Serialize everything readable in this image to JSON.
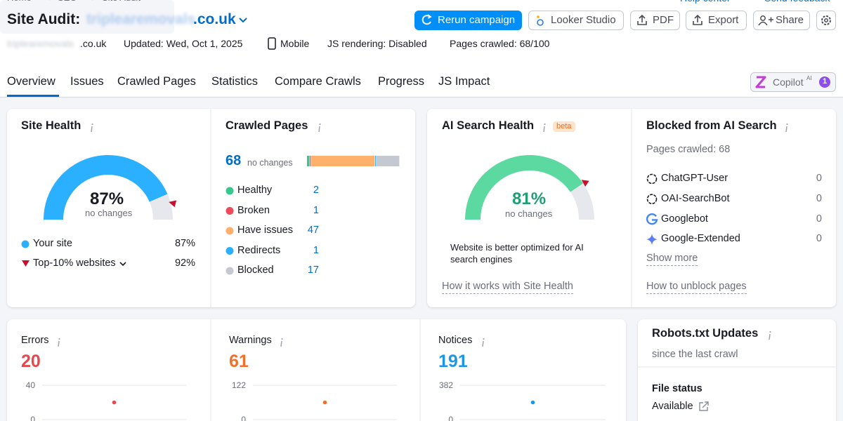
{
  "breadcrumb": [
    "Home",
    "SEO",
    "Site Audit"
  ],
  "top_links": [
    "Help center",
    "Send feedback"
  ],
  "header": {
    "title": "Site Audit:",
    "domain_blurred": "triplearemovals",
    "domain_tld": ".co.uk"
  },
  "actions": [
    "Rerun campaign",
    "Looker Studio",
    "PDF",
    "Export",
    "Share"
  ],
  "info": {
    "domain_blurred": "triplearemovals",
    "domain_tld": ".co.uk",
    "updated": "Updated: Wed, Oct 1, 2025",
    "device": "Mobile",
    "js_rendering": "JS rendering: Disabled",
    "pages_crawled": "Pages crawled: 68/100"
  },
  "tabs": [
    "Overview",
    "Issues",
    "Crawled Pages",
    "Statistics",
    "Compare Crawls",
    "Progress",
    "JS Impact"
  ],
  "copilot": {
    "label": "Copilot",
    "sup": "AI",
    "badge": "1"
  },
  "site_health": {
    "title": "Site Health",
    "change": "no changes",
    "legend": [
      {
        "name": "Your site",
        "value": 87,
        "value_label": "87%",
        "color": "#2bb0ff"
      },
      {
        "name": "Top-10% websites",
        "value": 92,
        "value_label": "92%",
        "color": "#c8102e"
      }
    ]
  },
  "crawled_pages": {
    "title": "Crawled Pages",
    "total": 68,
    "change": "no changes",
    "items": [
      {
        "name": "Healthy",
        "value": 2,
        "color": "#36c78f"
      },
      {
        "name": "Broken",
        "value": 1,
        "color": "#f04a5a"
      },
      {
        "name": "Have issues",
        "value": 47,
        "color": "#ffb06b"
      },
      {
        "name": "Redirects",
        "value": 1,
        "color": "#2bb0ff"
      },
      {
        "name": "Blocked",
        "value": 17,
        "color": "#c4c8d0"
      }
    ]
  },
  "ai_search_health": {
    "title": "AI Search Health",
    "badge": "beta",
    "value": 81,
    "value_label": "81%",
    "color": "#5cd9a0",
    "change": "no changes",
    "note": "Website is better optimized for AI search engines",
    "link": "How it works with Site Health"
  },
  "blocked_ai": {
    "title": "Blocked from AI Search",
    "subtitle": "Pages crawled: 68",
    "bots": [
      {
        "name": "ChatGPT-User",
        "value": 0
      },
      {
        "name": "OAI-SearchBot",
        "value": 0
      },
      {
        "name": "Googlebot",
        "value": 0
      },
      {
        "name": "Google-Extended",
        "value": 0
      }
    ],
    "show_more": "Show more",
    "link": "How to unblock pages"
  },
  "issues": [
    {
      "title": "Errors",
      "value": 20,
      "color": "#e5484d",
      "ylim": [
        0,
        40
      ],
      "yticks": [
        0,
        40
      ]
    },
    {
      "title": "Warnings",
      "value": 61,
      "color": "#f0712c",
      "ylim": [
        0,
        122
      ],
      "yticks": [
        0,
        122
      ]
    },
    {
      "title": "Notices",
      "value": 191,
      "color": "#1e96e8",
      "ylim": [
        0,
        382
      ],
      "yticks": [
        0,
        382
      ]
    }
  ],
  "robots": {
    "title": "Robots.txt Updates",
    "subtitle": "since the last crawl",
    "file_status_label": "File status",
    "file_status": "Available"
  }
}
